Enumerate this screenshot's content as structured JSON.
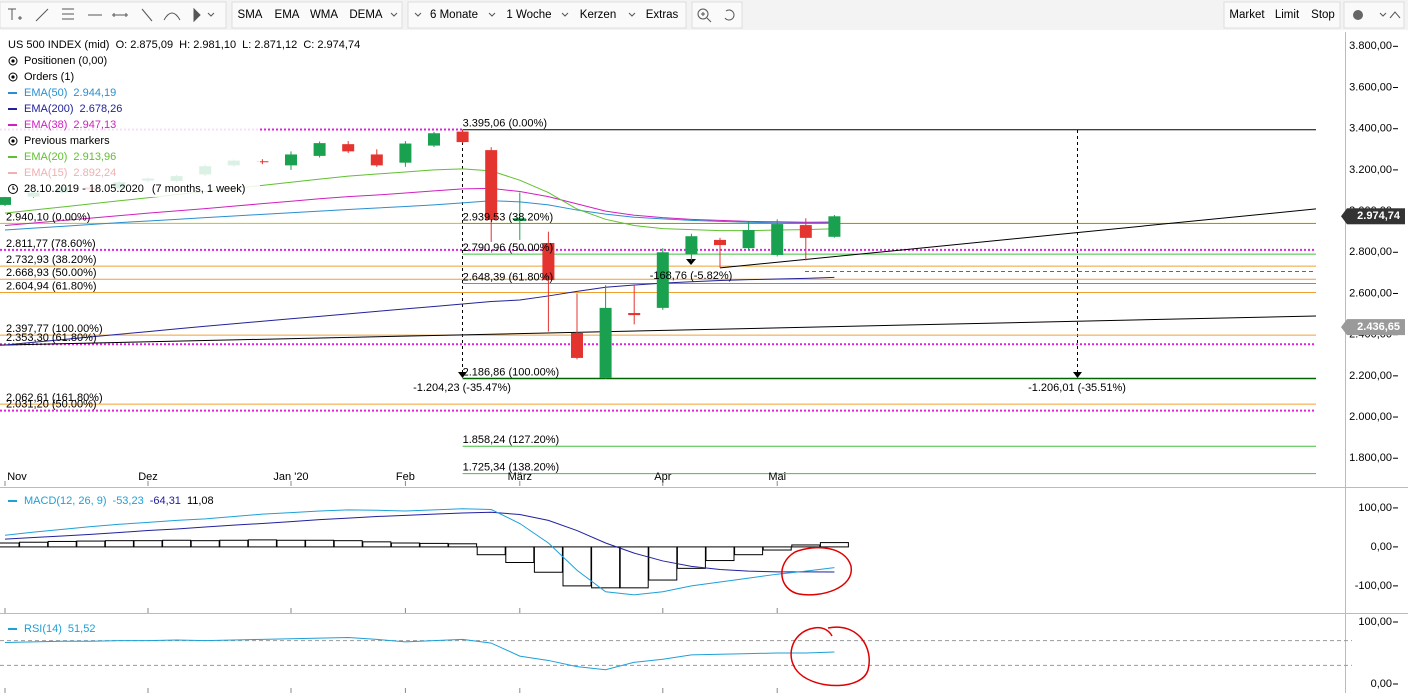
{
  "toolbar": {
    "indicators": [
      "SMA",
      "EMA",
      "WMA",
      "DEMA"
    ],
    "range": "6 Monate",
    "interval": "1 Woche",
    "style": "Kerzen",
    "extras": "Extras",
    "orders": [
      "Market",
      "Limit",
      "Stop"
    ]
  },
  "chart_data": [
    {
      "type": "candlestick",
      "title": "US 500 INDEX (mid)  O: 2.875,09  H: 2.981,10  L: 2.871,12  C: 2.974,74",
      "positions": "Positionen (0,00)",
      "orders": "Orders (1)",
      "markers": "Previous markers",
      "date_range": "28.10.2019 - 18.05.2020",
      "period": "(7 months, 1 week)",
      "categories": [
        "Nov",
        null,
        null,
        null,
        null,
        "Dez",
        null,
        null,
        null,
        null,
        "Jan '20",
        null,
        null,
        null,
        "Feb",
        null,
        null,
        null,
        "März",
        null,
        null,
        null,
        null,
        "Apr",
        null,
        null,
        null,
        "Mai",
        null,
        null
      ],
      "open": [
        3030,
        3070,
        3090,
        3115,
        3110,
        3148,
        3146,
        3178,
        3222,
        3242,
        3222,
        3268,
        3325,
        3275,
        3235,
        3318,
        3386,
        3296,
        2952,
        2845,
        2408,
        2190,
        2505,
        2530,
        2790,
        2860,
        2820,
        2787,
        2932,
        2875.09
      ],
      "high": [
        3075,
        3095,
        3120,
        3125,
        3145,
        3163,
        3175,
        3225,
        3250,
        3252,
        3290,
        3338,
        3340,
        3300,
        3340,
        3385,
        3395,
        3310,
        3090,
        2900,
        2600,
        2640,
        2640,
        2820,
        2890,
        2870,
        2950,
        2960,
        2965,
        2981.1
      ],
      "low": [
        3025,
        3065,
        3085,
        3095,
        3105,
        3140,
        3140,
        3170,
        3215,
        3228,
        3200,
        3260,
        3282,
        3215,
        3215,
        3312,
        3330,
        2850,
        2860,
        2415,
        2280,
        2186,
        2450,
        2520,
        2760,
        2725,
        2810,
        2780,
        2760,
        2871.12
      ],
      "close": [
        3068,
        3090,
        3115,
        3105,
        3140,
        3158,
        3170,
        3218,
        3245,
        3238,
        3275,
        3330,
        3290,
        3222,
        3328,
        3378,
        3335,
        2957,
        2965,
        2665,
        2287,
        2530,
        2495,
        2800,
        2878,
        2835,
        2908,
        2937,
        2870,
        2974.74
      ],
      "up_color": "#1aa150",
      "down_color": "#e3342f",
      "series": [
        {
          "name": "EMA(50)",
          "color": "#2a8fd0",
          "last_label": "2.944,19",
          "values": [
            2908,
            2917,
            2926,
            2935,
            2944,
            2952,
            2960,
            2968,
            2976,
            2984,
            2992,
            3000,
            3008,
            3015,
            3022,
            3030,
            3040,
            3050,
            3045,
            3030,
            3005,
            2985,
            2970,
            2962,
            2955,
            2950,
            2946,
            2943,
            2942,
            2944.19
          ]
        },
        {
          "name": "EMA(200)",
          "color": "#22229a",
          "last_label": "2.678,26",
          "values": [
            2350,
            2363,
            2376,
            2389,
            2402,
            2415,
            2428,
            2441,
            2453,
            2465,
            2477,
            2489,
            2501,
            2513,
            2525,
            2537,
            2549,
            2561,
            2568,
            2588,
            2610,
            2630,
            2641,
            2650,
            2657,
            2663,
            2667,
            2670,
            2673,
            2678.26
          ]
        },
        {
          "name": "EMA(38)",
          "color": "#d020c0",
          "last_label": "2.947,13",
          "values": [
            2930,
            2942,
            2954,
            2966,
            2978,
            2990,
            3001,
            3012,
            3024,
            3036,
            3048,
            3060,
            3070,
            3078,
            3088,
            3098,
            3108,
            3110,
            3095,
            3070,
            3035,
            3000,
            2980,
            2968,
            2960,
            2955,
            2950,
            2948,
            2946,
            2947.13
          ]
        },
        {
          "name": "EMA(20)",
          "color": "#60c030",
          "last_label": "2.913,96",
          "values": [
            2990,
            3005,
            3020,
            3035,
            3050,
            3065,
            3080,
            3095,
            3110,
            3125,
            3140,
            3155,
            3170,
            3180,
            3190,
            3200,
            3205,
            3195,
            3150,
            3090,
            3010,
            2960,
            2930,
            2915,
            2910,
            2905,
            2905,
            2908,
            2910,
            2913.96
          ]
        },
        {
          "name": "EMA(15)",
          "color": "#f0b0b0",
          "last_label": "2.892,24"
        }
      ],
      "levels": [
        {
          "value": 2940.1,
          "label": "2.940,10 (0.00%)",
          "color": "#c8c000"
        },
        {
          "value": 2811.77,
          "label": "2.811,77 (78.60%)",
          "color": "#e020e0",
          "dash": true
        },
        {
          "value": 2732.93,
          "label": "2.732,93 (38.20%)",
          "color": "#f0a030"
        },
        {
          "value": 2668.93,
          "label": "2.668,93 (50.00%)",
          "color": "#f0a030"
        },
        {
          "value": 2604.94,
          "label": "2.604,94 (61.80%)",
          "color": "#f0a030"
        },
        {
          "value": 2397.77,
          "label": "2.397,77 (100.00%)",
          "color": "#f0a030"
        },
        {
          "value": 2353.3,
          "label": "2.353,30 (61.80%)",
          "color": "#e020e0",
          "dash": true
        },
        {
          "value": 2062.61,
          "label": "2.062,61 (161.80%)",
          "color": "#f0a030"
        },
        {
          "value": 2031.2,
          "label": "2.031,20 (50.00%)",
          "color": "#e020e0",
          "dash": true
        }
      ],
      "retracement": [
        {
          "value": 3395.06,
          "label": "3.395,06 (0.00%)",
          "color": "#000000"
        },
        {
          "value": 2939.53,
          "label": "2.939,53 (38.20%)",
          "color": "#40c040"
        },
        {
          "value": 2790.96,
          "label": "2.790,96 (50.00%)",
          "color": "#40c040"
        },
        {
          "value": 2648.39,
          "label": "2.648,39 (61.80%)",
          "color": "#40c040"
        },
        {
          "value": 2186.86,
          "label": "2.186,86 (100.00%)",
          "color": "#006400"
        },
        {
          "value": 1858.24,
          "label": "1.858,24 (127.20%)",
          "color": "#40c040"
        },
        {
          "value": 1725.34,
          "label": "1.725,34 (138.20%)",
          "color": "#40c040"
        }
      ],
      "annotations": [
        "-1.204,23 (-35.47%)",
        "-1.206,01 (-35.51%)",
        "-168,76 (-5.82%)"
      ],
      "trendlines": [
        {
          "color": "#000000",
          "points": [
            [
              25,
              2724
            ],
            [
              29,
              2779
            ]
          ]
        },
        {
          "color": "#000000",
          "points": [
            [
              0,
              2350
            ],
            [
              29,
              2439
            ]
          ]
        }
      ],
      "price_labels": [
        {
          "value": 2974.74,
          "label": "2.974,74",
          "color": "#333333"
        },
        {
          "value": 2436.65,
          "label": "2.436,65",
          "color": "#9a9a9a"
        }
      ],
      "ylim": [
        1670,
        3855
      ],
      "yticks": [
        {
          "value": 3800,
          "label": "3.800,00"
        },
        {
          "value": 3600,
          "label": "3.600,00"
        },
        {
          "value": 3400,
          "label": "3.400,00"
        },
        {
          "value": 3200,
          "label": "3.200,00"
        },
        {
          "value": 3000,
          "label": "3.000,00"
        },
        {
          "value": 2800,
          "label": "2.800,00"
        },
        {
          "value": 2600,
          "label": "2.600,00"
        },
        {
          "value": 2400,
          "label": "2.400,00"
        },
        {
          "value": 2200,
          "label": "2.200,00"
        },
        {
          "value": 2000,
          "label": "2.000,00"
        },
        {
          "value": 1800,
          "label": "1.800,00"
        }
      ]
    },
    {
      "type": "macd",
      "title": "MACD(12, 26, 9)",
      "series": [
        {
          "name": "MACD",
          "color": "#1ea0d8",
          "last_label": "-53,23",
          "values": [
            30,
            38,
            45,
            52,
            58,
            63,
            68,
            72,
            78,
            84,
            88,
            92,
            95,
            94,
            92,
            95,
            98,
            96,
            60,
            10,
            -60,
            -115,
            -123,
            -115,
            -100,
            -90,
            -80,
            -70,
            -62,
            -53.23
          ]
        },
        {
          "name": "Signal",
          "color": "#2020a0",
          "last_label": "-64,31",
          "values": [
            20,
            24,
            28,
            32,
            37,
            42,
            46,
            51,
            56,
            60,
            65,
            70,
            74,
            78,
            81,
            84,
            87,
            89,
            83,
            68,
            42,
            10,
            -16,
            -36,
            -50,
            -58,
            -62,
            -64,
            -64,
            -64.31
          ]
        },
        {
          "name": "Histogram",
          "color": "#000000",
          "last_label": "11,08",
          "values": [
            10,
            12,
            14,
            15,
            16,
            16,
            17,
            16,
            17,
            18,
            17,
            17,
            16,
            13,
            10,
            9,
            8,
            -20,
            -40,
            -65,
            -100,
            -105,
            -105,
            -85,
            -55,
            -35,
            -20,
            -8,
            5,
            11.08
          ]
        }
      ],
      "ylim": [
        -167,
        146
      ],
      "yticks": [
        {
          "value": 100,
          "label": "100,00"
        },
        {
          "value": 0,
          "label": "0,00"
        },
        {
          "value": -100,
          "label": "-100,00"
        }
      ]
    },
    {
      "type": "rsi",
      "title": "RSI(14)",
      "series": [
        {
          "name": "RSI",
          "color": "#1ea0d8",
          "last_label": "51,52",
          "values": [
            67,
            68,
            69,
            69,
            70,
            70,
            71,
            70,
            71,
            72,
            73,
            74,
            75,
            72,
            68,
            70,
            72,
            66,
            45,
            38,
            28,
            23,
            35,
            40,
            47,
            48,
            49,
            50,
            50,
            51.52
          ]
        }
      ],
      "levels": [
        70,
        30
      ],
      "ylim": [
        -12.9,
        111.3
      ],
      "yticks": [
        {
          "value": 100,
          "label": "100,00"
        },
        {
          "value": 0,
          "label": "0,00"
        }
      ]
    }
  ]
}
